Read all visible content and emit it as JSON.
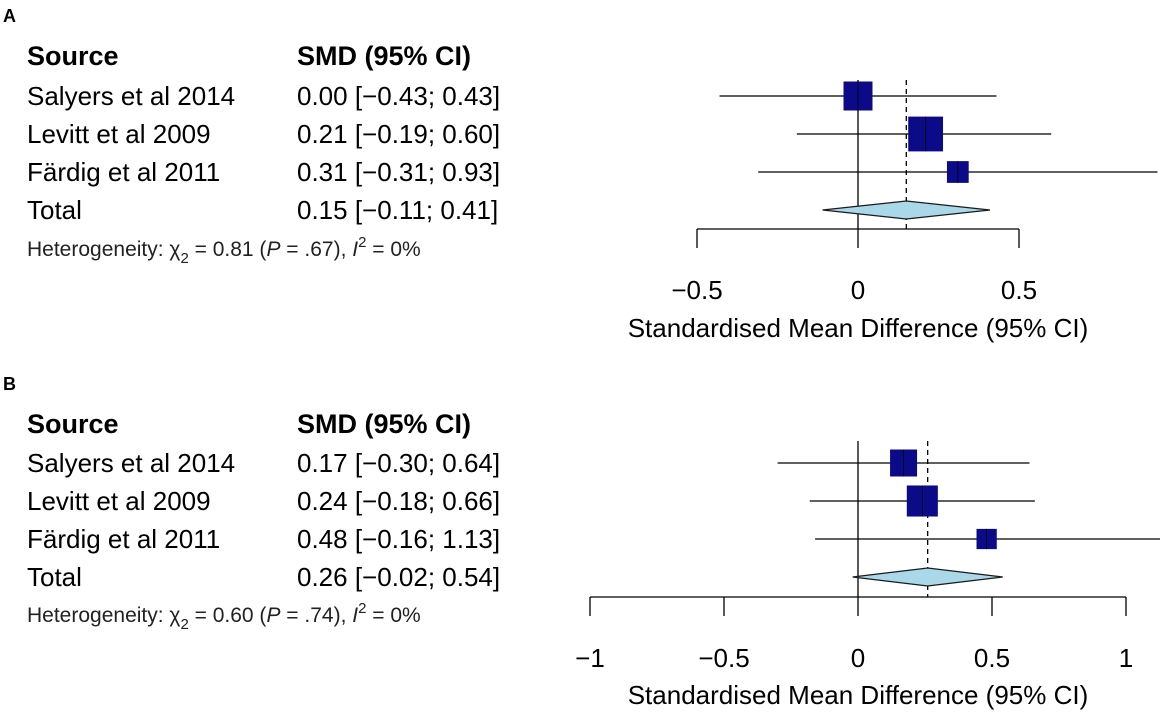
{
  "chart_data": [
    {
      "type": "forest",
      "panel_label": "A",
      "header": {
        "source": "Source",
        "effect": "SMD (95% CI)"
      },
      "studies": [
        {
          "name": "Salyers et al 2014",
          "ci_text": "0.00 [−0.43; 0.43]",
          "est": 0.0,
          "lo": -0.43,
          "hi": 0.43,
          "weight": 1.0
        },
        {
          "name": "Levitt et al 2009",
          "ci_text": "0.21 [−0.19; 0.60]",
          "est": 0.21,
          "lo": -0.19,
          "hi": 0.6,
          "weight": 1.2
        },
        {
          "name": "Färdig et al 2011",
          "ci_text": "0.31 [−0.31; 0.93]",
          "est": 0.31,
          "lo": -0.31,
          "hi": 0.93,
          "weight": 0.75
        }
      ],
      "total": {
        "name": "Total",
        "ci_text": "0.15 [−0.11; 0.41]",
        "est": 0.15,
        "lo": -0.11,
        "hi": 0.41
      },
      "heterogeneity": {
        "prefix": "Heterogeneity: ",
        "chi": "χ",
        "df": "2",
        "stat": " = 0.81 (",
        "p_label": "P",
        "p_text": " = .67), ",
        "i_label": "I",
        "i_sup": "2",
        "i_text": " = 0%"
      },
      "xaxis": {
        "min": -0.5,
        "max": 0.5,
        "ticks": [
          -0.5,
          0,
          0.5
        ],
        "tick_labels": [
          "−0.5",
          "0",
          "0.5"
        ],
        "label": "Standardised Mean Difference (95% CI)"
      },
      "clip_range": [
        -0.5,
        1.0
      ]
    },
    {
      "type": "forest",
      "panel_label": "B",
      "header": {
        "source": "Source",
        "effect": "SMD (95% CI)"
      },
      "studies": [
        {
          "name": "Salyers et al 2014",
          "ci_text": "0.17 [−0.30; 0.64]",
          "est": 0.17,
          "lo": -0.3,
          "hi": 0.64,
          "weight": 1.0
        },
        {
          "name": "Levitt et al 2009",
          "ci_text": "0.24 [−0.18; 0.66]",
          "est": 0.24,
          "lo": -0.18,
          "hi": 0.66,
          "weight": 1.15
        },
        {
          "name": "Färdig et al 2011",
          "ci_text": "0.48 [−0.16; 1.13]",
          "est": 0.48,
          "lo": -0.16,
          "hi": 1.13,
          "weight": 0.75
        }
      ],
      "total": {
        "name": "Total",
        "ci_text": "0.26 [−0.02; 0.54]",
        "est": 0.26,
        "lo": -0.02,
        "hi": 0.54
      },
      "heterogeneity": {
        "prefix": "Heterogeneity: ",
        "chi": "χ",
        "df": "2",
        "stat": " = 0.60 (",
        "p_label": "P",
        "p_text": " = .74), ",
        "i_label": "I",
        "i_sup": "2",
        "i_text": " = 0%"
      },
      "xaxis": {
        "min": -1,
        "max": 1,
        "ticks": [
          -1,
          -0.5,
          0,
          0.5,
          1
        ],
        "tick_labels": [
          "−1",
          "−0.5",
          "0",
          "0.5",
          "1"
        ],
        "label": "Standardised Mean Difference (95% CI)"
      },
      "clip_range": [
        -1,
        1.15
      ]
    }
  ],
  "colors": {
    "square": "#0b0b8a",
    "diamond_fill": "#aad8e8",
    "diamond_stroke": "#1a1a1a",
    "line": "#000000"
  }
}
